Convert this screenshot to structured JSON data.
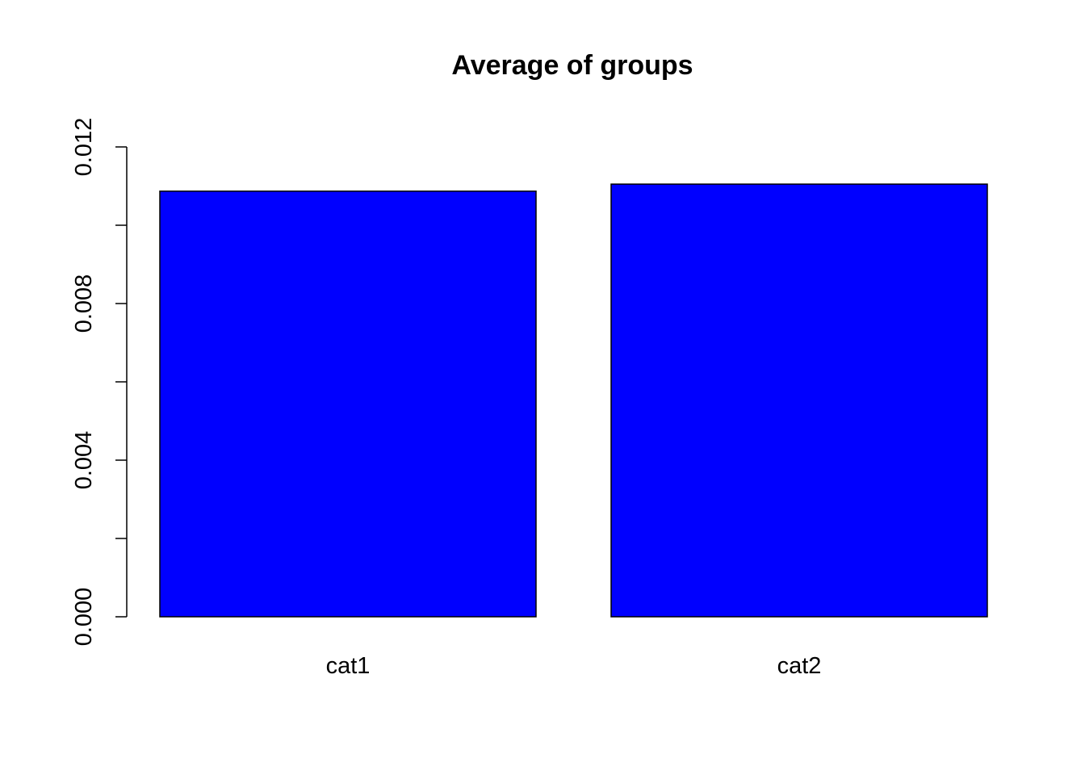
{
  "chart_data": {
    "type": "bar",
    "title": "Average of groups",
    "xlabel": "",
    "ylabel": "",
    "categories": [
      "cat1",
      "cat2"
    ],
    "values": [
      0.01087,
      0.01105
    ],
    "ylim": [
      0,
      0.012
    ],
    "y_ticks": [
      0,
      0.002,
      0.004,
      0.006,
      0.008,
      0.01,
      0.012
    ],
    "y_tick_labels": [
      "0.000",
      "",
      "0.004",
      "",
      "0.008",
      "",
      "0.012"
    ],
    "bar_color": "#0000ff",
    "bar_border_color": "#000000",
    "grid": false,
    "legend": "none"
  }
}
